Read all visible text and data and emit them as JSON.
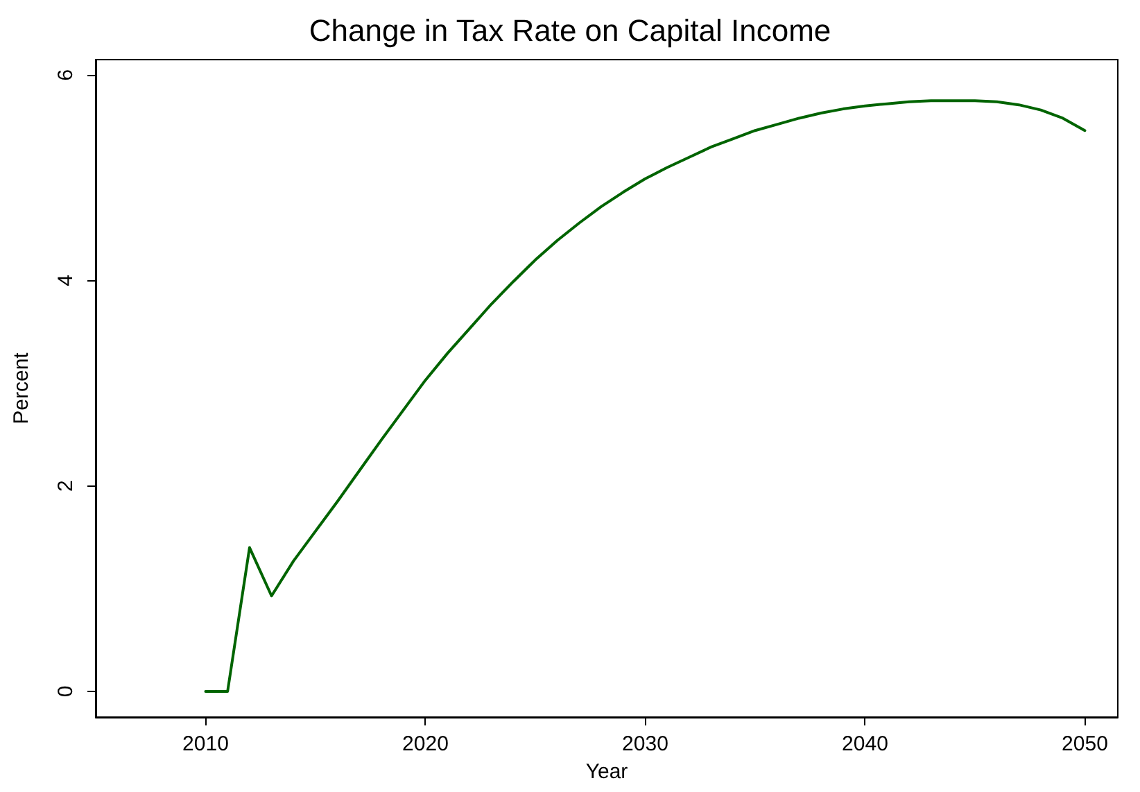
{
  "chart_data": {
    "type": "line",
    "title": "Change in Tax Rate on Capital Income",
    "xlabel": "Year",
    "ylabel": "Percent",
    "x": [
      2010,
      2011,
      2012,
      2013,
      2014,
      2015,
      2016,
      2017,
      2018,
      2019,
      2020,
      2021,
      2022,
      2023,
      2024,
      2025,
      2026,
      2027,
      2028,
      2029,
      2030,
      2031,
      2032,
      2033,
      2034,
      2035,
      2036,
      2037,
      2038,
      2039,
      2040,
      2041,
      2042,
      2043,
      2044,
      2045,
      2046,
      2047,
      2048,
      2049,
      2050
    ],
    "series": [
      {
        "color": "#006400",
        "values": [
          0,
          0,
          1.4,
          0.93,
          1.27,
          1.56,
          1.85,
          2.15,
          2.45,
          2.74,
          3.03,
          3.29,
          3.53,
          3.77,
          3.99,
          4.2,
          4.39,
          4.56,
          4.72,
          4.86,
          4.99,
          5.1,
          5.2,
          5.3,
          5.38,
          5.46,
          5.52,
          5.58,
          5.63,
          5.67,
          5.7,
          5.72,
          5.74,
          5.75,
          5.75,
          5.75,
          5.74,
          5.71,
          5.66,
          5.58,
          5.46
        ]
      }
    ],
    "xlim": [
      2005,
      2051.5
    ],
    "ylim": [
      -0.25,
      6.15
    ],
    "xticks": [
      2010,
      2020,
      2030,
      2040,
      2050
    ],
    "yticks": [
      0,
      2,
      4,
      6
    ],
    "grid": false,
    "marker": "none",
    "line_style": "solid"
  }
}
